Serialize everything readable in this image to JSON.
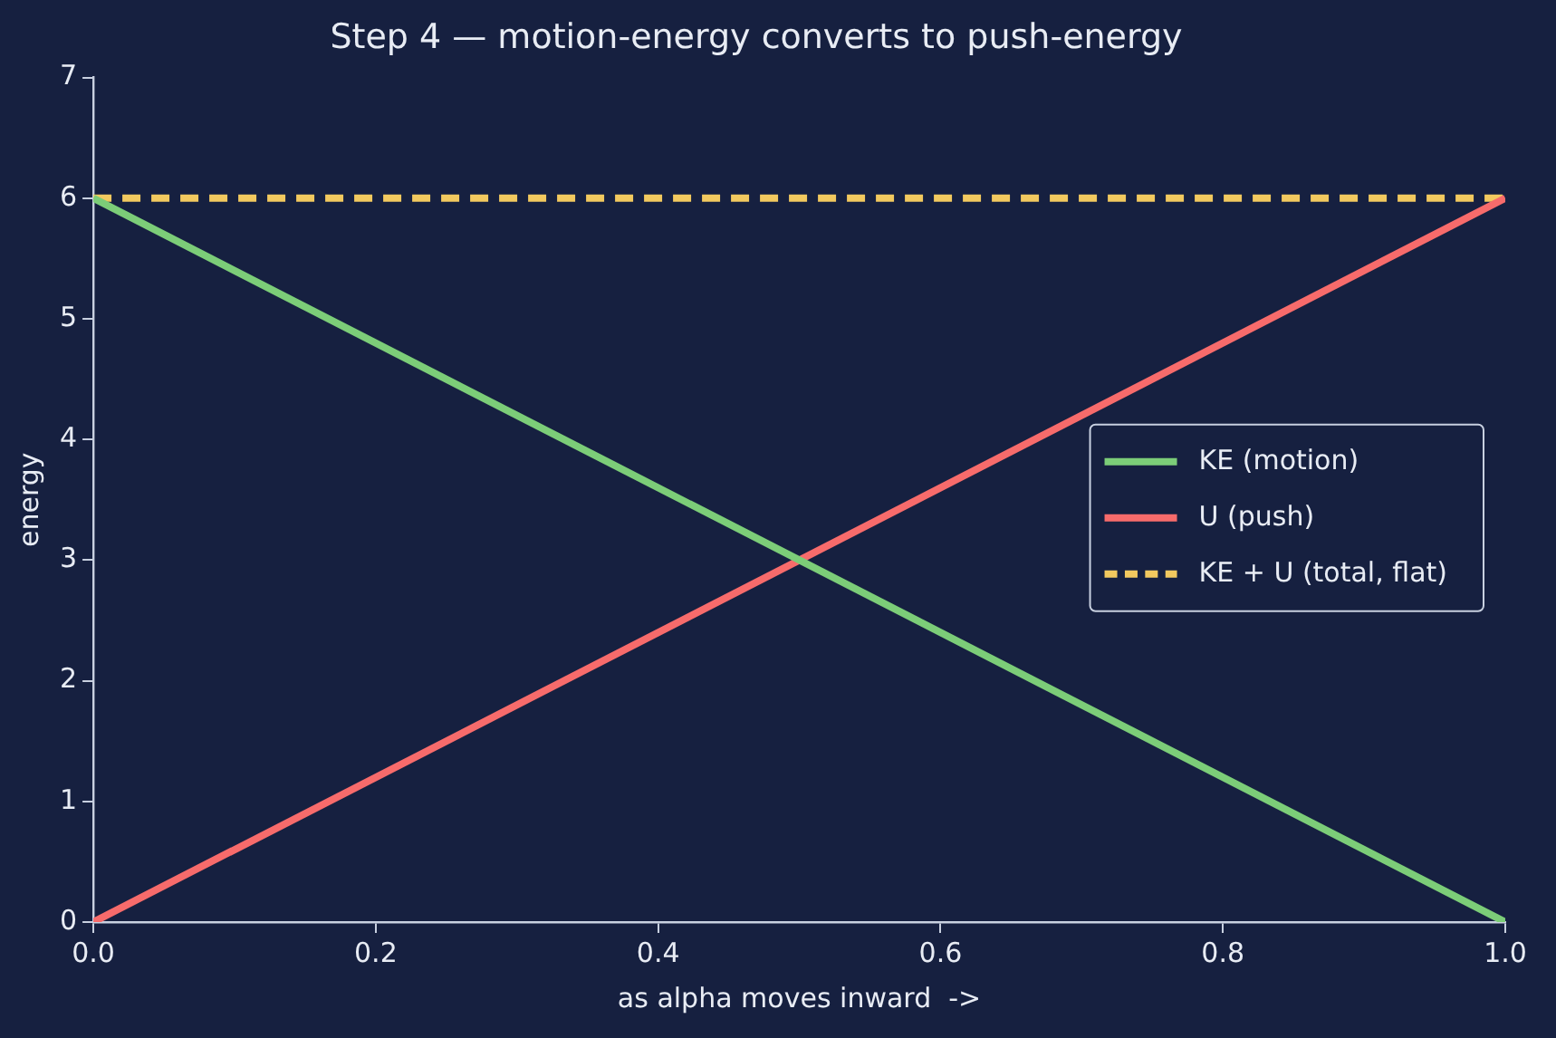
{
  "chart_data": {
    "type": "line",
    "title": "Step 4 — motion-energy converts to push-energy",
    "xlabel": "as alpha moves inward  ->",
    "ylabel": "energy",
    "x": [
      0,
      1
    ],
    "series": [
      {
        "name": "KE (motion)",
        "color": "#7ccd78",
        "values": [
          6,
          0
        ],
        "line_style": "solid"
      },
      {
        "name": "U (push)",
        "color": "#f76b6b",
        "values": [
          0,
          6
        ],
        "line_style": "solid"
      },
      {
        "name": "KE + U (total, flat)",
        "color": "#f2c95f",
        "values": [
          6,
          6
        ],
        "line_style": "dashed"
      }
    ],
    "xlim": [
      0,
      1
    ],
    "xticks": [
      {
        "value": 0,
        "label": "0.0"
      },
      {
        "value": 0.2,
        "label": "0.2"
      },
      {
        "value": 0.4,
        "label": "0.4"
      },
      {
        "value": 0.6,
        "label": "0.6"
      },
      {
        "value": 0.8,
        "label": "0.8"
      },
      {
        "value": 1,
        "label": "1.0"
      }
    ],
    "ylim": [
      0,
      7
    ],
    "yticks": [
      0,
      1,
      2,
      3,
      4,
      5,
      6,
      7
    ],
    "grid": false,
    "legend": "right",
    "marker": "none"
  }
}
